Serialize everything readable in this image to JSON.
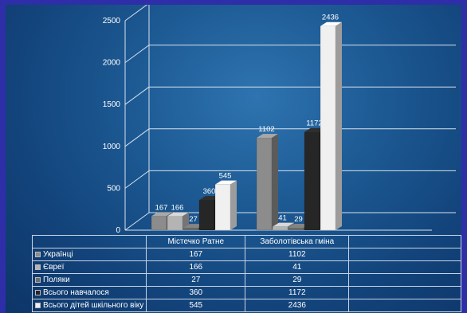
{
  "chart_data": {
    "type": "bar",
    "categories": [
      "Містечко Ратне",
      "Заболотівська гміна"
    ],
    "series": [
      {
        "name": "Українці",
        "values": [
          167,
          1102
        ],
        "color": "#8c8c8c"
      },
      {
        "name": "Євреї",
        "values": [
          166,
          41
        ],
        "color": "#b4b4b4"
      },
      {
        "name": "Поляки",
        "values": [
          27,
          29
        ],
        "color": "#6e6e6e"
      },
      {
        "name": "Всього навчалося",
        "values": [
          360,
          1172
        ],
        "color": "#262626"
      },
      {
        "name": "Всього дітей шкільного віку",
        "values": [
          545,
          2436
        ],
        "color": "#f0f0f0"
      }
    ],
    "yticks": [
      0,
      500,
      1000,
      1500,
      2000,
      2500
    ],
    "ylim": [
      0,
      2500
    ],
    "grid": true,
    "legend": "data table"
  },
  "table": {
    "columns": [
      "Містечко Ратне",
      "Заболотівська гміна",
      ""
    ],
    "rows": [
      {
        "label": "Українці",
        "values": [
          "167",
          "1102"
        ],
        "key_color": "#8c8c8c"
      },
      {
        "label": "Євреї",
        "values": [
          "166",
          "41"
        ],
        "key_color": "#b4b4b4"
      },
      {
        "label": "Поляки",
        "values": [
          "27",
          "29"
        ],
        "key_color": "#6e6e6e"
      },
      {
        "label": "Всього навчалося",
        "values": [
          "360",
          "1172"
        ],
        "key_color": "#262626"
      },
      {
        "label": "Всього дітей шкільного віку",
        "values": [
          "545",
          "2436"
        ],
        "key_color": "#f0f0f0"
      }
    ]
  }
}
